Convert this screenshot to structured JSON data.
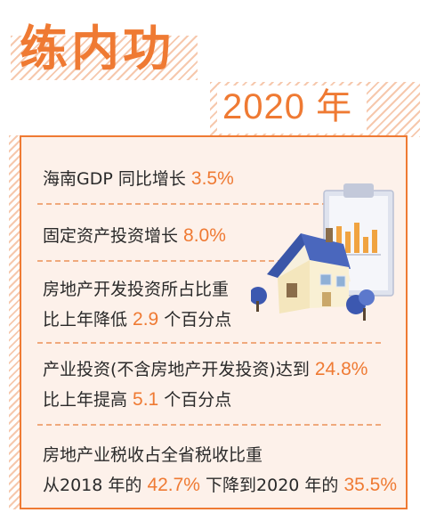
{
  "header": {
    "title": "练内功",
    "year": "2020 年"
  },
  "items": [
    {
      "lines": [
        {
          "text": "海南GDP 同比增长 ",
          "num": "3.5%",
          "tail": ""
        }
      ]
    },
    {
      "lines": [
        {
          "text": "固定资产投资增长 ",
          "num": "8.0%",
          "tail": ""
        }
      ]
    },
    {
      "lines": [
        {
          "text": "房地产开发投资所占比重",
          "num": "",
          "tail": ""
        },
        {
          "text": "比上年降低 ",
          "num": "2.9",
          "tail": " 个百分点"
        }
      ]
    },
    {
      "lines": [
        {
          "text": "产业投资(不含房地产开发投资)达到 ",
          "num": "24.8%",
          "tail": ""
        },
        {
          "text": "比上年提高 ",
          "num": "5.1",
          "tail": " 个百分点"
        }
      ]
    },
    {
      "lines": [
        {
          "text": "房地产业税收占全省税收比重",
          "num": "",
          "tail": ""
        },
        {
          "text": "从2018 年的 ",
          "num": "42.7%",
          "tail": " 下降到2020 年的 ",
          "num2": "35.5%"
        }
      ]
    }
  ],
  "colors": {
    "accent": "#ef7a33",
    "panel_bg": "#fdf1ea",
    "text": "#2a2a2a"
  },
  "illustration": {
    "icons": [
      "house-icon",
      "clipboard-bar-chart-icon",
      "tree-icon"
    ]
  }
}
